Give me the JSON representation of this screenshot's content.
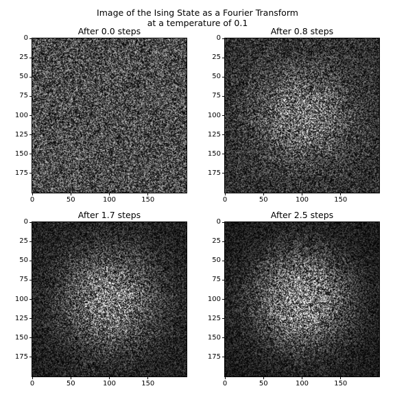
{
  "figure": {
    "title_line1": "Image of the Ising State as a Fourier Transform",
    "title_line2": "at a temperature of 0.1"
  },
  "chart_data": [
    {
      "type": "heatmap",
      "title": "After 0.0 steps",
      "colormap": "gray",
      "xlim": [
        0,
        200
      ],
      "ylim": [
        200,
        0
      ],
      "xticks": [
        0,
        50,
        100,
        150
      ],
      "yticks": [
        0,
        25,
        50,
        75,
        100,
        125,
        150,
        175
      ],
      "center": [
        100,
        100
      ],
      "pattern": "uniform noise"
    },
    {
      "type": "heatmap",
      "title": "After 0.8 steps",
      "colormap": "gray",
      "xlim": [
        0,
        200
      ],
      "ylim": [
        200,
        0
      ],
      "xticks": [
        0,
        50,
        100,
        150
      ],
      "yticks": [
        0,
        25,
        50,
        75,
        100,
        125,
        150,
        175
      ],
      "center": [
        100,
        100
      ],
      "pattern": "bright center noise"
    },
    {
      "type": "heatmap",
      "title": "After 1.7 steps",
      "colormap": "gray",
      "xlim": [
        0,
        200
      ],
      "ylim": [
        200,
        0
      ],
      "xticks": [
        0,
        50,
        100,
        150
      ],
      "yticks": [
        0,
        25,
        50,
        75,
        100,
        125,
        150,
        175
      ],
      "center": [
        100,
        100
      ],
      "pattern": "bright center noise"
    },
    {
      "type": "heatmap",
      "title": "After 2.5 steps",
      "colormap": "gray",
      "xlim": [
        0,
        200
      ],
      "ylim": [
        200,
        0
      ],
      "xticks": [
        0,
        50,
        100,
        150
      ],
      "yticks": [
        0,
        25,
        50,
        75,
        100,
        125,
        150,
        175
      ],
      "center": [
        100,
        100
      ],
      "pattern": "bright center noise"
    }
  ]
}
